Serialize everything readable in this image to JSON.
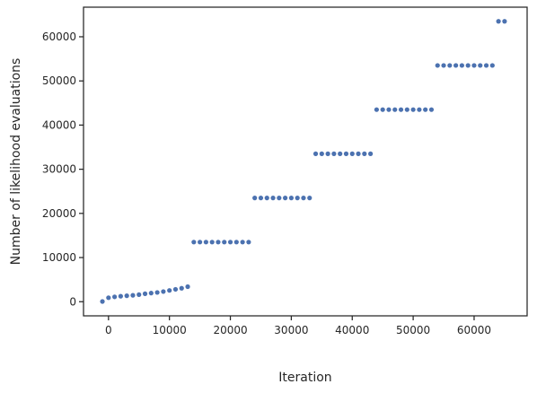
{
  "colors": {
    "point": "#4c72b0",
    "axis": "#262626",
    "background": "#ffffff"
  },
  "chart_data": {
    "type": "scatter",
    "title": "",
    "xlabel": "Iteration",
    "ylabel": "Number of likelihood evaluations",
    "xlim": [
      -4100,
      68700
    ],
    "ylim": [
      -3200,
      66700
    ],
    "grid": false,
    "x_ticks": [
      0,
      10000,
      20000,
      30000,
      40000,
      50000,
      60000
    ],
    "x_tick_labels": [
      "0",
      "10000",
      "20000",
      "30000",
      "40000",
      "50000",
      "60000"
    ],
    "y_ticks": [
      0,
      10000,
      20000,
      30000,
      40000,
      50000,
      60000
    ],
    "y_tick_labels": [
      "0",
      "10000",
      "20000",
      "30000",
      "40000",
      "50000",
      "60000"
    ],
    "series": [
      {
        "points": [
          [
            -1000,
            50
          ],
          [
            0,
            900
          ],
          [
            1000,
            1100
          ],
          [
            2000,
            1250
          ],
          [
            3000,
            1350
          ],
          [
            4000,
            1450
          ],
          [
            5000,
            1600
          ],
          [
            6000,
            1800
          ],
          [
            7000,
            1950
          ],
          [
            8000,
            2100
          ],
          [
            9000,
            2300
          ],
          [
            10000,
            2550
          ],
          [
            11000,
            2800
          ],
          [
            12000,
            3050
          ],
          [
            13000,
            3400
          ],
          [
            14000,
            13500
          ],
          [
            15000,
            13500
          ],
          [
            16000,
            13500
          ],
          [
            17000,
            13500
          ],
          [
            18000,
            13500
          ],
          [
            19000,
            13500
          ],
          [
            20000,
            13500
          ],
          [
            21000,
            13500
          ],
          [
            22000,
            13500
          ],
          [
            23000,
            13500
          ],
          [
            24000,
            23500
          ],
          [
            25000,
            23500
          ],
          [
            26000,
            23500
          ],
          [
            27000,
            23500
          ],
          [
            28000,
            23500
          ],
          [
            29000,
            23500
          ],
          [
            30000,
            23500
          ],
          [
            31000,
            23500
          ],
          [
            32000,
            23500
          ],
          [
            33000,
            23500
          ],
          [
            34000,
            33500
          ],
          [
            35000,
            33500
          ],
          [
            36000,
            33500
          ],
          [
            37000,
            33500
          ],
          [
            38000,
            33500
          ],
          [
            39000,
            33500
          ],
          [
            40000,
            33500
          ],
          [
            41000,
            33500
          ],
          [
            42000,
            33500
          ],
          [
            43000,
            33500
          ],
          [
            44000,
            43500
          ],
          [
            45000,
            43500
          ],
          [
            46000,
            43500
          ],
          [
            47000,
            43500
          ],
          [
            48000,
            43500
          ],
          [
            49000,
            43500
          ],
          [
            50000,
            43500
          ],
          [
            51000,
            43500
          ],
          [
            52000,
            43500
          ],
          [
            53000,
            43500
          ],
          [
            54000,
            53500
          ],
          [
            55000,
            53500
          ],
          [
            56000,
            53500
          ],
          [
            57000,
            53500
          ],
          [
            58000,
            53500
          ],
          [
            59000,
            53500
          ],
          [
            60000,
            53500
          ],
          [
            61000,
            53500
          ],
          [
            62000,
            53500
          ],
          [
            63000,
            53500
          ],
          [
            64000,
            63500
          ],
          [
            65000,
            63500
          ]
        ]
      }
    ]
  }
}
